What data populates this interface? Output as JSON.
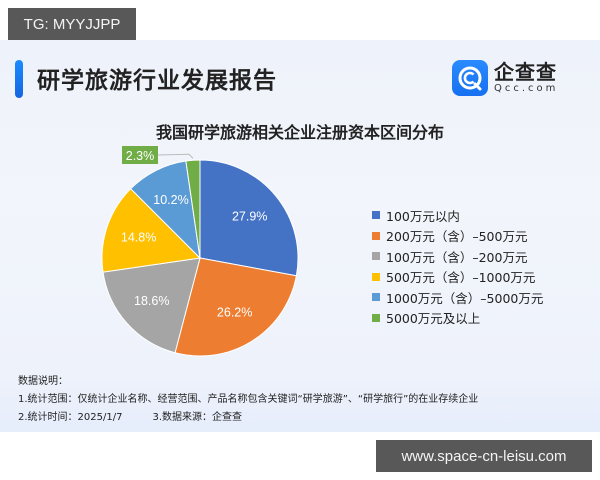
{
  "badge": {
    "text": "TG: MYYJJPP"
  },
  "header": {
    "title": "研学旅游行业发展报告",
    "logo_cn": "企查查",
    "logo_en": "Qcc.com"
  },
  "chart_data": {
    "type": "pie",
    "title": "我国研学旅游相关企业注册资本区间分布",
    "categories": [
      "100万元以内",
      "200万元（含）–500万元",
      "100万元（含）–200万元",
      "500万元（含）–1000万元",
      "1000万元（含）–5000万元",
      "5000万元及以上"
    ],
    "values": [
      27.9,
      26.2,
      18.6,
      14.8,
      10.2,
      2.3
    ],
    "labels": [
      "27.9%",
      "26.2%",
      "18.6%",
      "14.8%",
      "10.2%",
      "2.3%"
    ],
    "colors": [
      "#4472c4",
      "#ed7d31",
      "#a5a5a5",
      "#ffc000",
      "#5b9bd5",
      "#70ad47"
    ],
    "start_angle": "12 o'clock, clockwise",
    "legend_position": "right",
    "unit": "%"
  },
  "legend": {
    "items": [
      {
        "label": "100万元以内",
        "color": "#4472c4"
      },
      {
        "label": "200万元（含）–500万元",
        "color": "#ed7d31"
      },
      {
        "label": "100万元（含）–200万元",
        "color": "#a5a5a5"
      },
      {
        "label": "500万元（含）–1000万元",
        "color": "#ffc000"
      },
      {
        "label": "1000万元（含）–5000万元",
        "color": "#5b9bd5"
      },
      {
        "label": "5000万元及以上",
        "color": "#70ad47"
      }
    ]
  },
  "notes": {
    "heading": "数据说明：",
    "line1": "1.统计范围：仅统计企业名称、经营范围、产品名称包含关键词“研学旅游”、“研学旅行”的在业存续企业",
    "line2_time": "2.统计时间：2025/1/7",
    "line2_source": "3.数据来源：企查查"
  },
  "watermark": {
    "text": "www.space-cn-leisu.com"
  }
}
